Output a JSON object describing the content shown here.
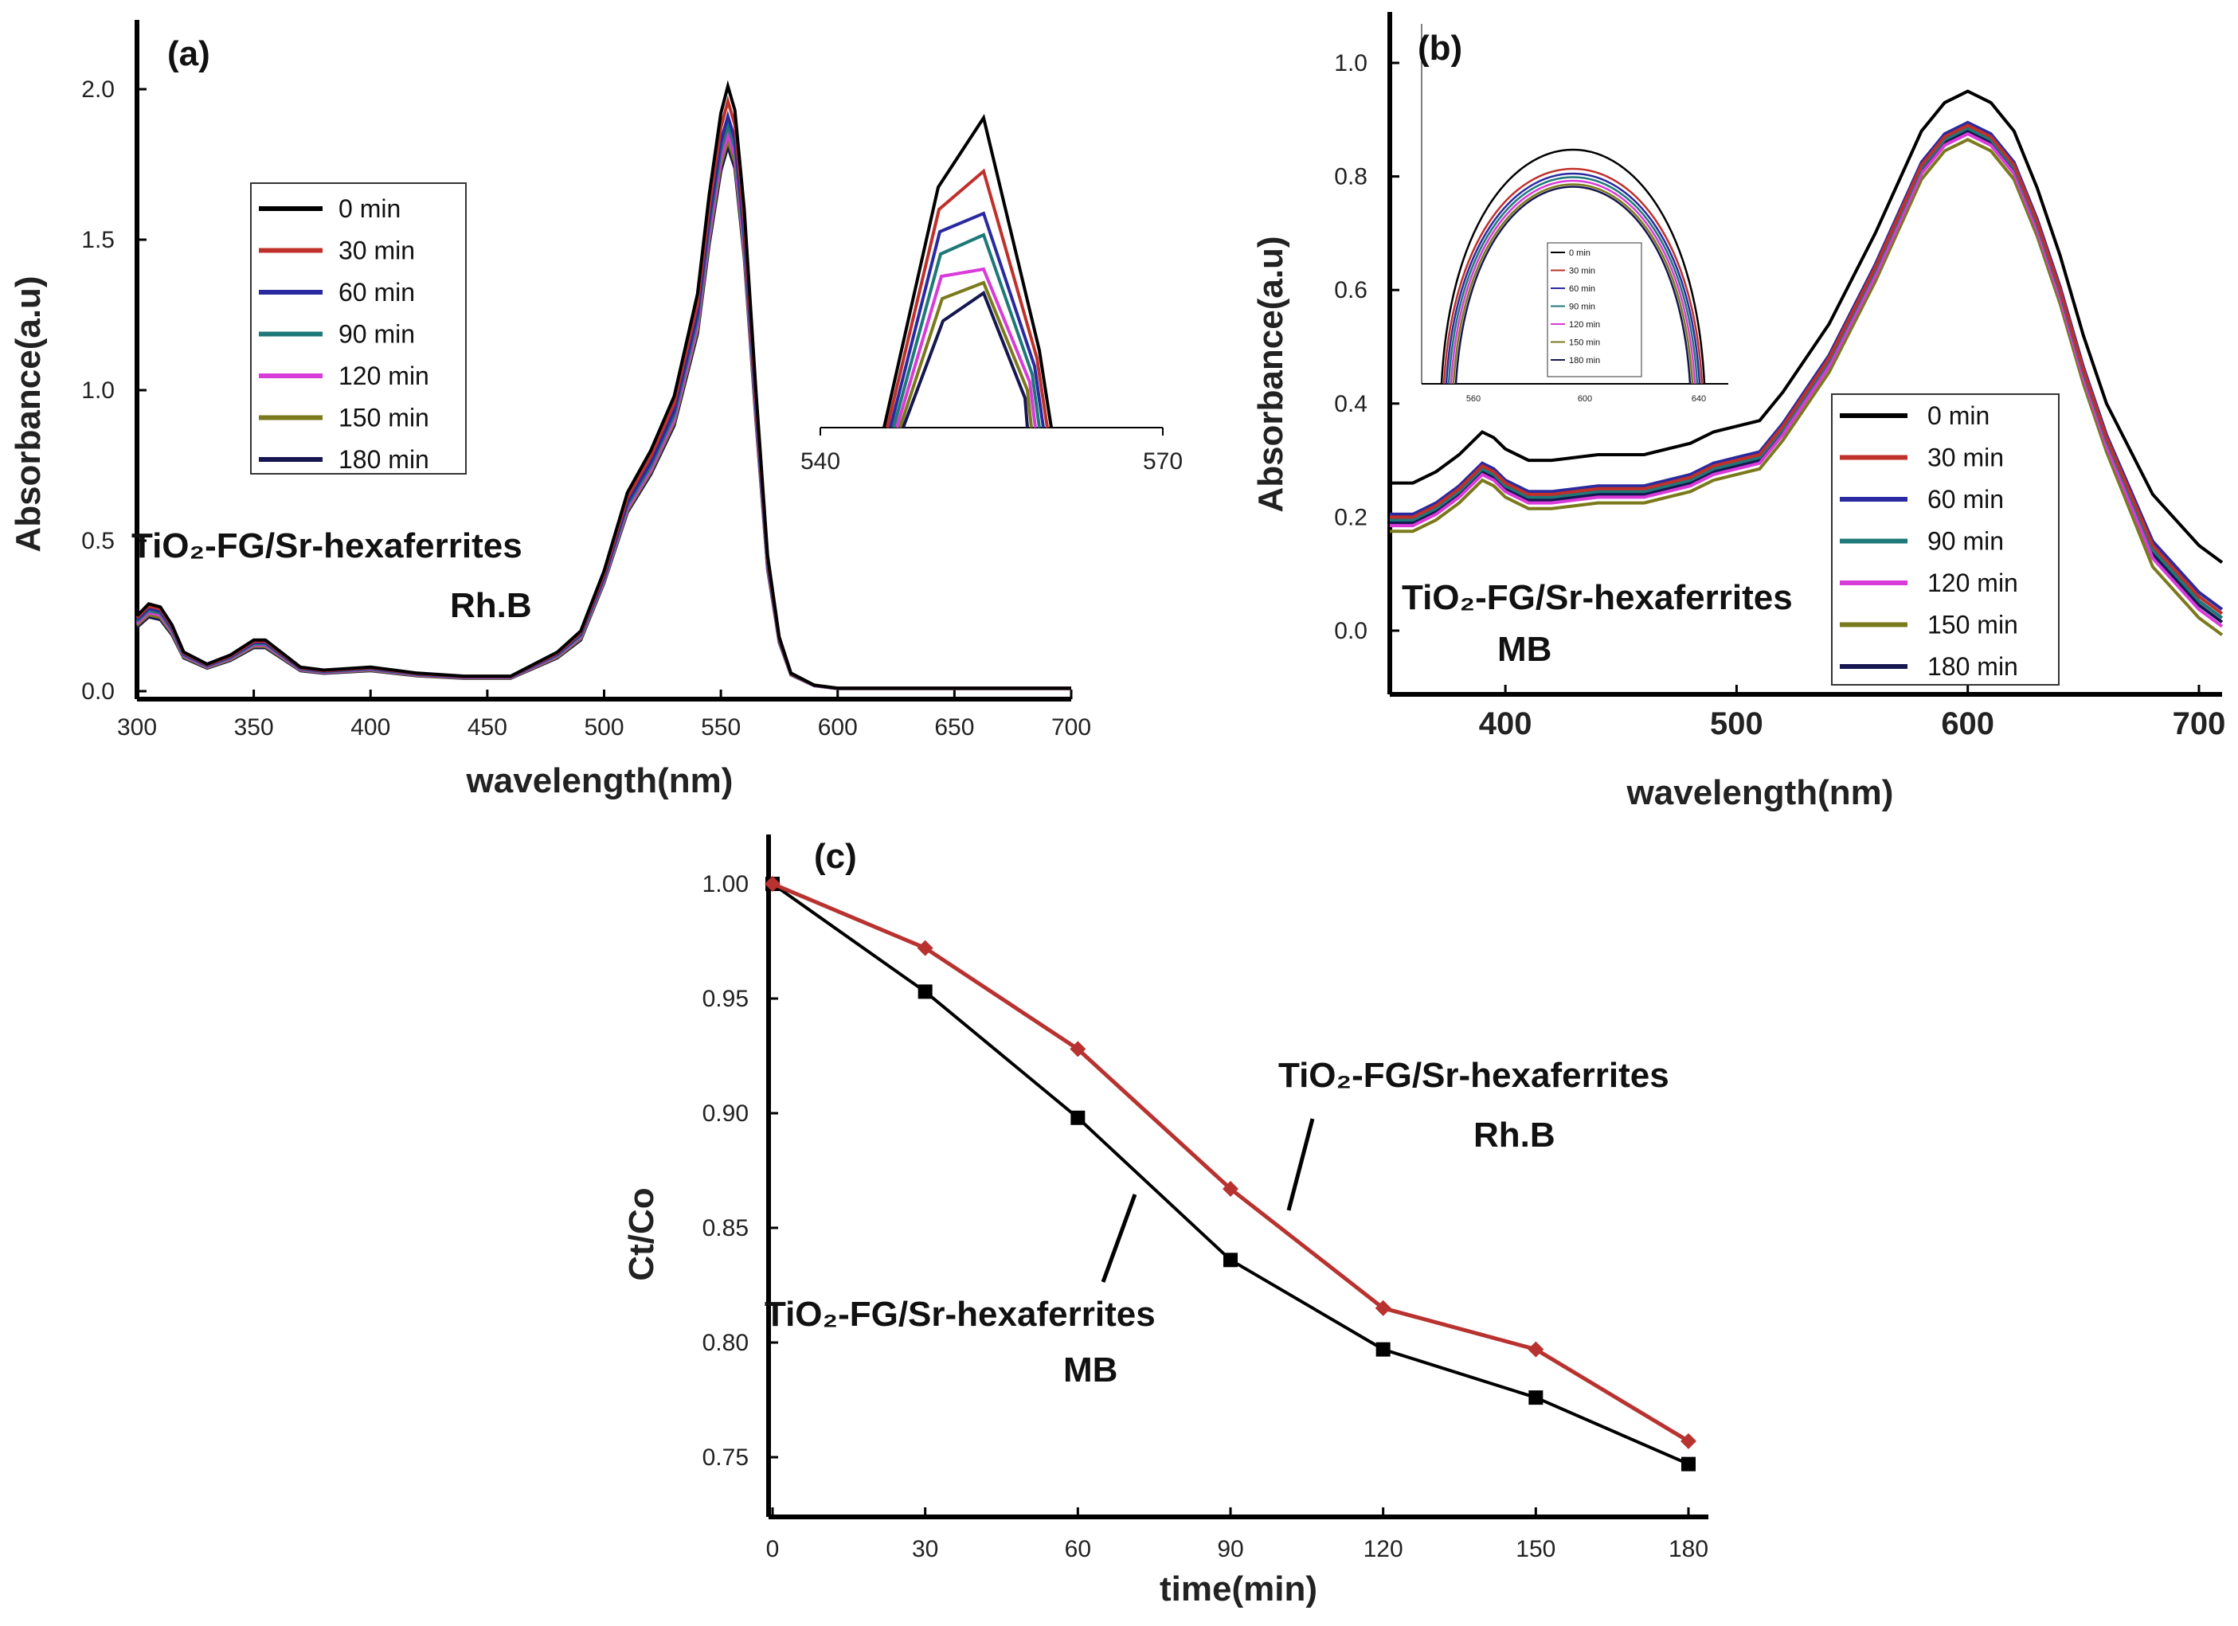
{
  "chart_data": [
    {
      "panel": "(a)",
      "type": "line",
      "title": "",
      "xlabel": "wavelength(nm)",
      "ylabel": "Absorbance(a.u)",
      "xlim": [
        300,
        700
      ],
      "ylim": [
        0,
        2.2
      ],
      "xticks": [
        "300",
        "350",
        "400",
        "450",
        "500",
        "550",
        "600",
        "650",
        "700"
      ],
      "yticks": [
        "0.0",
        "0.5",
        "1.0",
        "1.5",
        "2.0"
      ],
      "annotation": [
        "TiO₂-FG/Sr-hexaferrites",
        "Rh.B"
      ],
      "legend": [
        "0  min",
        "30  min",
        "60  min",
        "90  min",
        "120  min",
        "150  min",
        "180  min"
      ],
      "x": [
        300,
        305,
        310,
        315,
        320,
        330,
        340,
        350,
        355,
        360,
        370,
        380,
        400,
        420,
        440,
        460,
        470,
        480,
        490,
        500,
        510,
        520,
        530,
        540,
        545,
        550,
        553,
        556,
        560,
        565,
        570,
        575,
        580,
        590,
        600,
        650,
        700
      ],
      "series": [
        {
          "name": "0  min",
          "color": "#000000",
          "peak": 2.01,
          "values": [
            0.25,
            0.29,
            0.28,
            0.22,
            0.13,
            0.09,
            0.12,
            0.17,
            0.17,
            0.14,
            0.08,
            0.07,
            0.08,
            0.06,
            0.05,
            0.05,
            0.09,
            0.13,
            0.2,
            0.4,
            0.66,
            0.8,
            0.98,
            1.32,
            1.65,
            1.92,
            2.01,
            1.93,
            1.6,
            1.0,
            0.45,
            0.18,
            0.06,
            0.02,
            0.01,
            0.01,
            0.01
          ]
        },
        {
          "name": "30  min",
          "color": "#c0302a",
          "peak": 1.96
        },
        {
          "name": "60  min",
          "color": "#2a2aa0",
          "peak": 1.91
        },
        {
          "name": "90  min",
          "color": "#1e7878",
          "peak": 1.88
        },
        {
          "name": "120  min",
          "color": "#d93bd9",
          "peak": 1.85
        },
        {
          "name": "150  min",
          "color": "#7a7a1c",
          "peak": 1.83
        },
        {
          "name": "180  min",
          "color": "#161650",
          "peak": 1.81
        }
      ],
      "inset": {
        "xlim": [
          540,
          570
        ],
        "xticks": [
          "540",
          "570"
        ]
      }
    },
    {
      "panel": "(b)",
      "type": "line",
      "title": "",
      "xlabel": "wavelength(nm)",
      "ylabel": "Absorbance(a.u)",
      "xlim": [
        350,
        710
      ],
      "ylim": [
        -0.1,
        1.1
      ],
      "xticks": [
        "400",
        "500",
        "600",
        "700"
      ],
      "yticks": [
        "0.0",
        "0.2",
        "0.4",
        "0.6",
        "0.8",
        "1.0"
      ],
      "annotation": [
        "TiO₂-FG/Sr-hexaferrites",
        "MB"
      ],
      "legend": [
        "0 min",
        "30 min",
        "60 min",
        "90 min",
        "120 min",
        "150 min",
        "180 min"
      ],
      "x": [
        350,
        360,
        370,
        380,
        390,
        395,
        400,
        410,
        420,
        440,
        460,
        480,
        490,
        500,
        510,
        520,
        540,
        560,
        580,
        590,
        600,
        610,
        620,
        630,
        640,
        650,
        660,
        680,
        700,
        710
      ],
      "series": [
        {
          "name": "0 min",
          "color": "#000000",
          "values": [
            0.26,
            0.26,
            0.28,
            0.31,
            0.35,
            0.34,
            0.32,
            0.3,
            0.3,
            0.31,
            0.31,
            0.33,
            0.35,
            0.36,
            0.37,
            0.42,
            0.54,
            0.7,
            0.88,
            0.93,
            0.95,
            0.93,
            0.88,
            0.78,
            0.66,
            0.52,
            0.4,
            0.24,
            0.15,
            0.12
          ]
        },
        {
          "name": "30 min",
          "color": "#c0302a",
          "offset": -0.06
        },
        {
          "name": "60 min",
          "color": "#2a2aa0",
          "offset": -0.055
        },
        {
          "name": "90 min",
          "color": "#1e7878",
          "offset": -0.065
        },
        {
          "name": "120 min",
          "color": "#d93bd9",
          "offset": -0.075
        },
        {
          "name": "150 min",
          "color": "#7a7a1c",
          "offset": -0.085
        },
        {
          "name": "180 min",
          "color": "#161650",
          "offset": -0.07
        }
      ],
      "inset": {
        "xticks": [
          "560",
          "600",
          "640"
        ],
        "legend": [
          "0 min",
          "30 min",
          "60 min",
          "90 min",
          "120 min",
          "150 min",
          "180 min"
        ]
      }
    },
    {
      "panel": "(c)",
      "type": "line",
      "title": "",
      "xlabel": "time(min)",
      "ylabel": "Ct/Co",
      "xlim": [
        0,
        182
      ],
      "ylim": [
        0.735,
        1.01
      ],
      "xticks": [
        "0",
        "30",
        "60",
        "90",
        "120",
        "150",
        "180"
      ],
      "yticks": [
        "0.75",
        "0.80",
        "0.85",
        "0.90",
        "0.95",
        "1.00"
      ],
      "x": [
        0,
        30,
        60,
        90,
        120,
        150,
        180
      ],
      "series": [
        {
          "name": "TiO₂-FG/Sr-hexaferrites MB",
          "color": "#000000",
          "marker": "square",
          "values": [
            1.0,
            0.953,
            0.898,
            0.836,
            0.797,
            0.776,
            0.747
          ]
        },
        {
          "name": "TiO₂-FG/Sr-hexaferrites Rh.B",
          "color": "#b83230",
          "marker": "diamond",
          "values": [
            1.0,
            0.972,
            0.928,
            0.867,
            0.815,
            0.797,
            0.757
          ]
        }
      ],
      "annotations": [
        {
          "label": "TiO₂-FG/Sr-hexaferrites",
          "sub": "Rh.B"
        },
        {
          "label": "TiO₂-FG/Sr-hexaferrites",
          "sub": "MB"
        }
      ]
    }
  ]
}
